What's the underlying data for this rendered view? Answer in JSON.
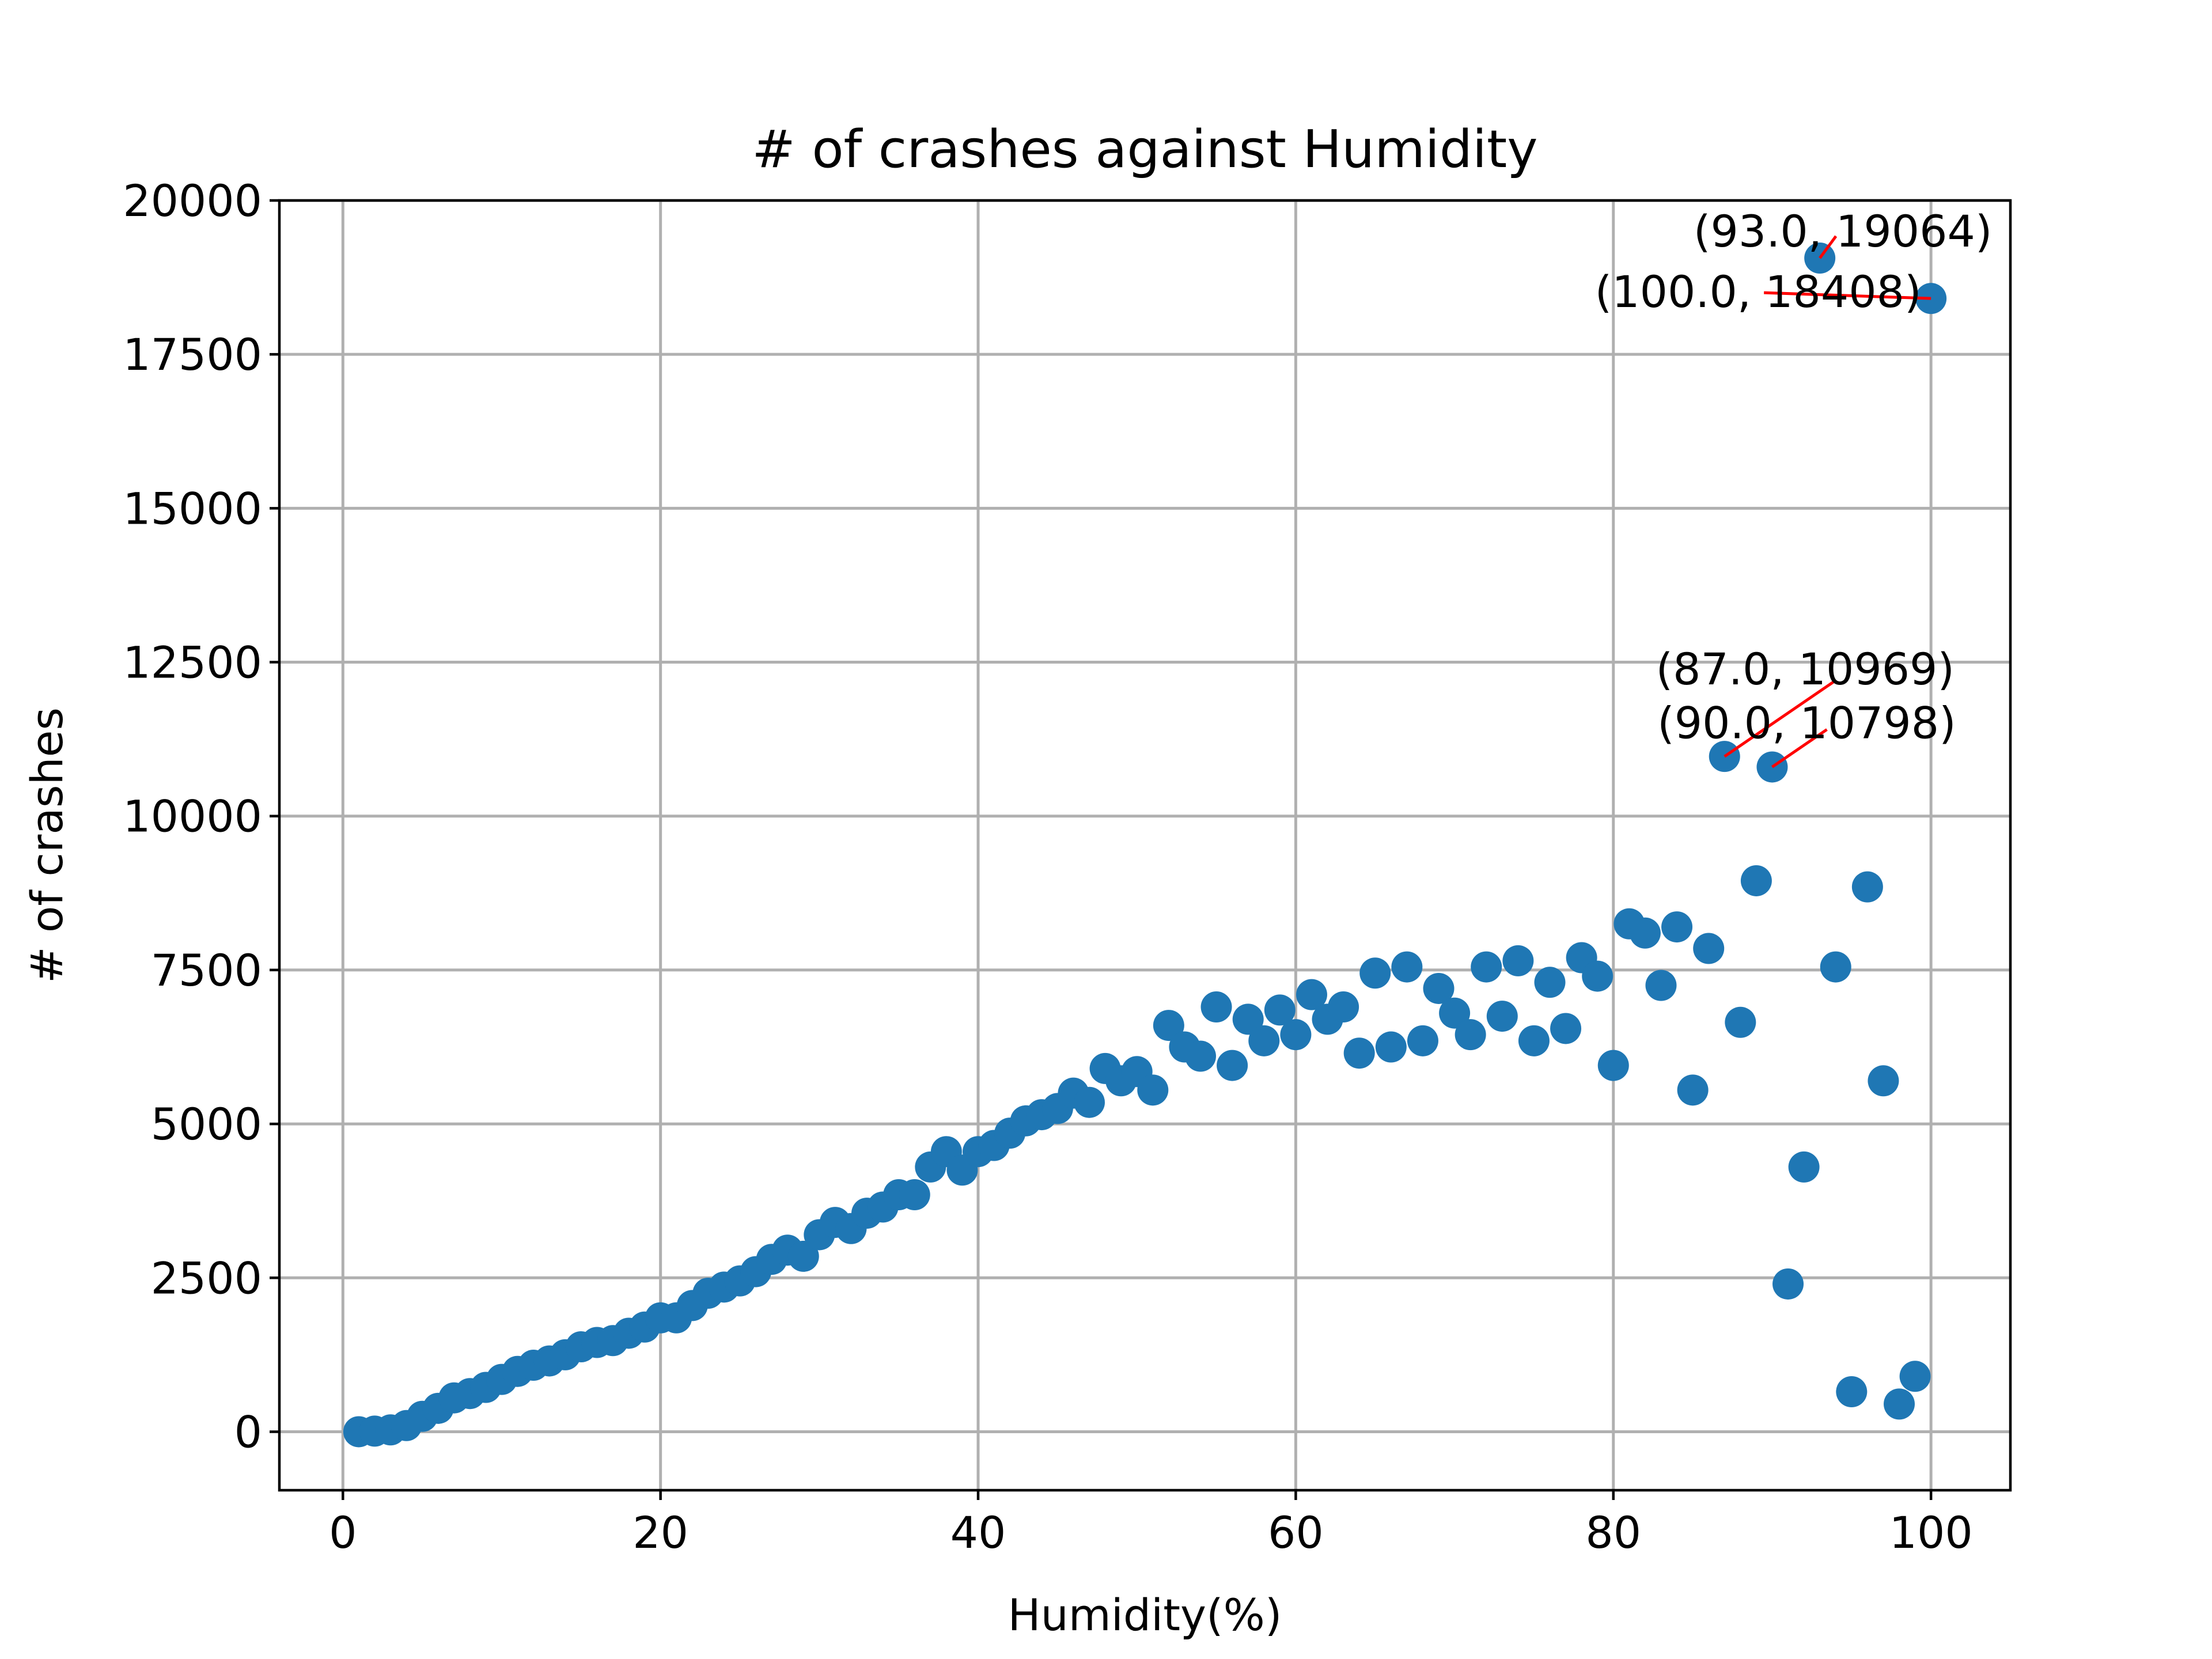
{
  "chart_data": {
    "type": "scatter",
    "title": "# of crashes against Humidity",
    "xlabel": "Humidity(%)",
    "ylabel": "# of crashes",
    "xlim": [
      -4,
      105
    ],
    "ylim": [
      -950,
      20000
    ],
    "xticks": [
      0,
      20,
      40,
      60,
      80,
      100
    ],
    "xtick_labels": [
      "0",
      "20",
      "40",
      "60",
      "80",
      "100"
    ],
    "yticks": [
      0,
      2500,
      5000,
      7500,
      10000,
      12500,
      15000,
      17500,
      20000
    ],
    "ytick_labels": [
      "0",
      "2500",
      "5000",
      "7500",
      "10000",
      "12500",
      "15000",
      "17500",
      "20000"
    ],
    "grid": true,
    "marker_color": "#1f77b4",
    "annotation_line_color": "#ff0000",
    "series": [
      {
        "x": [
          1,
          2,
          3,
          4,
          5,
          6,
          7,
          8,
          9,
          10,
          11,
          12,
          13,
          14,
          15,
          16,
          17,
          18,
          19,
          20,
          21,
          22,
          23,
          24,
          25,
          26,
          27,
          28,
          29,
          30,
          31,
          32,
          33,
          34,
          35,
          36,
          37,
          38,
          39,
          40,
          41,
          42,
          43,
          44,
          45,
          46,
          47,
          48,
          49,
          50,
          51,
          52,
          53,
          54,
          55,
          56,
          57,
          58,
          59,
          60,
          61,
          62,
          63,
          64,
          65,
          66,
          67,
          68,
          69,
          70,
          71,
          72,
          73,
          74,
          75,
          76,
          77,
          78,
          79,
          80,
          81,
          82,
          83,
          84,
          85,
          86,
          87,
          88,
          89,
          90,
          91,
          92,
          93,
          94,
          95,
          96,
          97,
          98,
          99,
          100
        ],
        "y": [
          0,
          10,
          30,
          100,
          250,
          380,
          550,
          620,
          720,
          850,
          980,
          1080,
          1150,
          1250,
          1380,
          1450,
          1480,
          1600,
          1700,
          1850,
          1850,
          2050,
          2250,
          2350,
          2450,
          2600,
          2800,
          2950,
          2850,
          3200,
          3400,
          3300,
          3550,
          3650,
          3850,
          3850,
          4300,
          4550,
          4250,
          4550,
          4650,
          4850,
          5050,
          5150,
          5250,
          5500,
          5350,
          5900,
          5700,
          5850,
          5550,
          6600,
          6250,
          6100,
          6900,
          5950,
          6700,
          6350,
          6850,
          6450,
          7100,
          6700,
          6900,
          6150,
          7450,
          6250,
          7550,
          6350,
          7200,
          6800,
          6450,
          7550,
          6750,
          7650,
          6350,
          7300,
          6550,
          7700,
          7400,
          5950,
          8250,
          8100,
          7250,
          8200,
          5550,
          7850,
          10969,
          6650,
          8950,
          10798,
          2400,
          4300,
          19064,
          7550,
          650,
          8850,
          5700,
          450,
          900,
          18408
        ]
      }
    ],
    "annotations": [
      {
        "text": "(93.0, 19064)",
        "x": 93,
        "y": 19064
      },
      {
        "text": "(100.0, 18408)",
        "x": 100,
        "y": 18408
      },
      {
        "text": "(87.0, 10969)",
        "x": 87,
        "y": 10969
      },
      {
        "text": "(90.0, 10798)",
        "x": 90,
        "y": 10798
      }
    ]
  }
}
